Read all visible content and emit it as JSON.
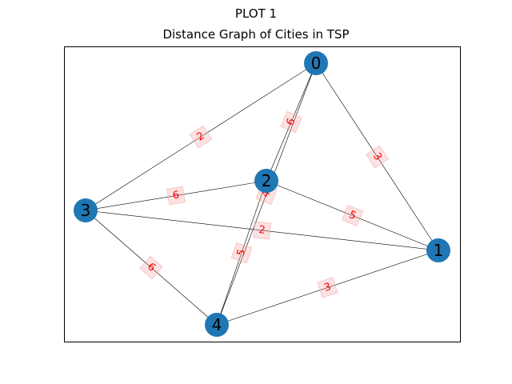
{
  "figure": {
    "suptitle": "PLOT 1",
    "title": "Distance Graph of Cities in TSP"
  },
  "graph": {
    "nodes": [
      {
        "id": "0",
        "label": "0"
      },
      {
        "id": "1",
        "label": "1"
      },
      {
        "id": "2",
        "label": "2"
      },
      {
        "id": "3",
        "label": "3"
      },
      {
        "id": "4",
        "label": "4"
      }
    ],
    "edges": [
      {
        "source": "0",
        "target": "1",
        "weight": "3"
      },
      {
        "source": "0",
        "target": "2",
        "weight": "6"
      },
      {
        "source": "0",
        "target": "3",
        "weight": "2"
      },
      {
        "source": "0",
        "target": "4",
        "weight": "4"
      },
      {
        "source": "1",
        "target": "2",
        "weight": "5"
      },
      {
        "source": "1",
        "target": "3",
        "weight": "2"
      },
      {
        "source": "1",
        "target": "4",
        "weight": "3"
      },
      {
        "source": "2",
        "target": "3",
        "weight": "6"
      },
      {
        "source": "2",
        "target": "4",
        "weight": "5"
      },
      {
        "source": "3",
        "target": "4",
        "weight": "6"
      }
    ]
  },
  "colors": {
    "node_fill": "#1f77b4",
    "edge": "#000000",
    "edge_label_text": "#ff0000",
    "edge_label_box": "#f4a0a0"
  }
}
